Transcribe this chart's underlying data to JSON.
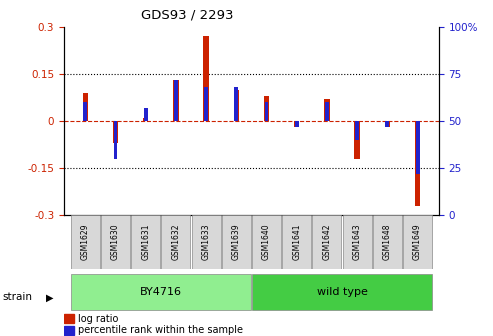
{
  "title": "GDS93 / 2293",
  "samples": [
    "GSM1629",
    "GSM1630",
    "GSM1631",
    "GSM1632",
    "GSM1633",
    "GSM1639",
    "GSM1640",
    "GSM1641",
    "GSM1642",
    "GSM1643",
    "GSM1648",
    "GSM1649"
  ],
  "log_ratio": [
    0.09,
    -0.07,
    0.01,
    0.13,
    0.27,
    0.1,
    0.08,
    -0.02,
    0.07,
    -0.12,
    -0.02,
    -0.27
  ],
  "percentile_rank": [
    60,
    30,
    57,
    72,
    68,
    68,
    60,
    47,
    60,
    40,
    47,
    22
  ],
  "groups": [
    {
      "label": "BY4716",
      "start": 0,
      "end": 5,
      "color": "#90ee90"
    },
    {
      "label": "wild type",
      "start": 6,
      "end": 11,
      "color": "#44cc44"
    }
  ],
  "ylim": [
    -0.3,
    0.3
  ],
  "y2lim": [
    0,
    100
  ],
  "yticks": [
    -0.3,
    -0.15,
    0,
    0.15,
    0.3
  ],
  "ytick_labels": [
    "-0.3",
    "-0.15",
    "0",
    "0.15",
    "0.3"
  ],
  "y2ticks": [
    0,
    25,
    50,
    75,
    100
  ],
  "y2tick_labels": [
    "0",
    "25",
    "50",
    "75",
    "100%"
  ],
  "bar_width": 0.18,
  "red_color": "#cc2200",
  "blue_color": "#2222cc",
  "grid_color": "black",
  "zero_line_color": "#cc2200",
  "bg_color": "white",
  "title_color": "black",
  "strain_label": "strain",
  "legend_items": [
    "log ratio",
    "percentile rank within the sample"
  ]
}
